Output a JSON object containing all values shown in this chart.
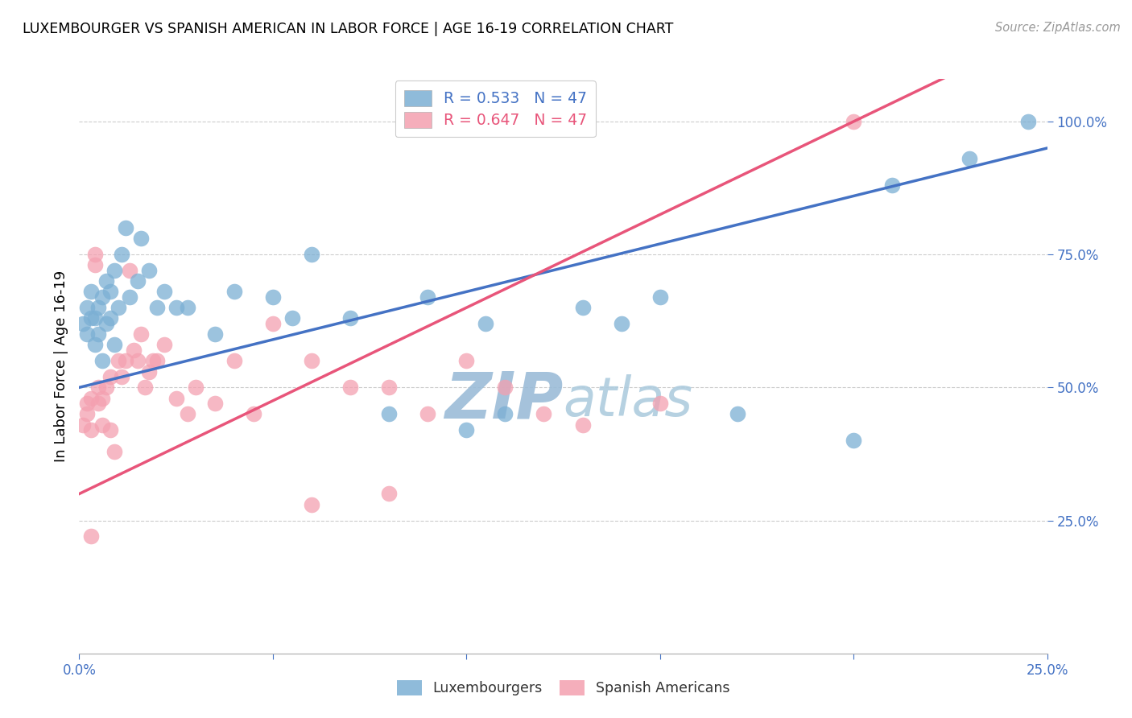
{
  "title": "LUXEMBOURGER VS SPANISH AMERICAN IN LABOR FORCE | AGE 16-19 CORRELATION CHART",
  "source_text": "Source: ZipAtlas.com",
  "ylabel": "In Labor Force | Age 16-19",
  "legend_labels": [
    "Luxembourgers",
    "Spanish Americans"
  ],
  "blue_R": 0.533,
  "blue_N": 47,
  "pink_R": 0.647,
  "pink_N": 47,
  "blue_color": "#7BAFD4",
  "pink_color": "#F4A0B0",
  "blue_line_color": "#4472C4",
  "pink_line_color": "#E8557A",
  "watermark_zip_color": "#C8D8EC",
  "watermark_atlas_color": "#C8D8EC",
  "x_min": 0.0,
  "x_max": 0.25,
  "y_min": 0.0,
  "y_max": 1.08,
  "right_yticks": [
    0.25,
    0.5,
    0.75,
    1.0
  ],
  "right_ytick_labels": [
    "25.0%",
    "50.0%",
    "75.0%",
    "100.0%"
  ],
  "bottom_xticks": [
    0.0,
    0.05,
    0.1,
    0.15,
    0.2,
    0.25
  ],
  "bottom_xtick_labels": [
    "0.0%",
    "",
    "",
    "",
    "",
    "25.0%"
  ],
  "blue_scatter_x": [
    0.001,
    0.002,
    0.002,
    0.003,
    0.003,
    0.004,
    0.004,
    0.005,
    0.005,
    0.006,
    0.006,
    0.007,
    0.007,
    0.008,
    0.008,
    0.009,
    0.009,
    0.01,
    0.011,
    0.012,
    0.013,
    0.015,
    0.016,
    0.018,
    0.02,
    0.022,
    0.025,
    0.028,
    0.035,
    0.04,
    0.05,
    0.055,
    0.06,
    0.07,
    0.08,
    0.09,
    0.1,
    0.105,
    0.11,
    0.13,
    0.14,
    0.15,
    0.17,
    0.2,
    0.21,
    0.23,
    0.245
  ],
  "blue_scatter_y": [
    0.62,
    0.6,
    0.65,
    0.63,
    0.68,
    0.58,
    0.63,
    0.65,
    0.6,
    0.67,
    0.55,
    0.7,
    0.62,
    0.68,
    0.63,
    0.72,
    0.58,
    0.65,
    0.75,
    0.8,
    0.67,
    0.7,
    0.78,
    0.72,
    0.65,
    0.68,
    0.65,
    0.65,
    0.6,
    0.68,
    0.67,
    0.63,
    0.75,
    0.63,
    0.45,
    0.67,
    0.42,
    0.62,
    0.45,
    0.65,
    0.62,
    0.67,
    0.45,
    0.4,
    0.88,
    0.93,
    1.0
  ],
  "pink_scatter_x": [
    0.001,
    0.002,
    0.002,
    0.003,
    0.003,
    0.004,
    0.004,
    0.005,
    0.005,
    0.006,
    0.006,
    0.007,
    0.008,
    0.008,
    0.009,
    0.01,
    0.011,
    0.012,
    0.013,
    0.014,
    0.015,
    0.016,
    0.017,
    0.018,
    0.019,
    0.02,
    0.022,
    0.025,
    0.028,
    0.03,
    0.035,
    0.04,
    0.045,
    0.05,
    0.06,
    0.07,
    0.08,
    0.09,
    0.1,
    0.11,
    0.12,
    0.13,
    0.15,
    0.003,
    0.06,
    0.08,
    0.2
  ],
  "pink_scatter_y": [
    0.43,
    0.45,
    0.47,
    0.42,
    0.48,
    0.73,
    0.75,
    0.47,
    0.5,
    0.43,
    0.48,
    0.5,
    0.42,
    0.52,
    0.38,
    0.55,
    0.52,
    0.55,
    0.72,
    0.57,
    0.55,
    0.6,
    0.5,
    0.53,
    0.55,
    0.55,
    0.58,
    0.48,
    0.45,
    0.5,
    0.47,
    0.55,
    0.45,
    0.62,
    0.55,
    0.5,
    0.5,
    0.45,
    0.55,
    0.5,
    0.45,
    0.43,
    0.47,
    0.22,
    0.28,
    0.3,
    1.0
  ],
  "grid_color": "#CCCCCC",
  "axis_color": "#AAAAAA",
  "right_tick_color": "#4472C4",
  "bottom_tick_color": "#4472C4",
  "blue_line_intercept": 0.5,
  "blue_line_slope": 1.8,
  "pink_line_intercept": 0.3,
  "pink_line_slope": 3.5
}
